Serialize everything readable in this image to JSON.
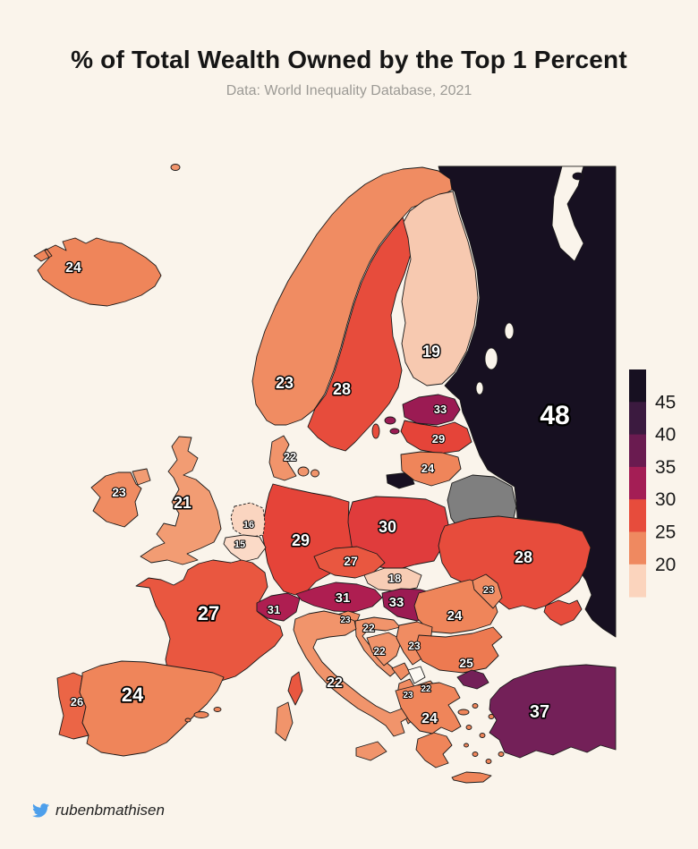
{
  "title": "% of Total Wealth Owned by the Top 1 Percent",
  "subtitle": "Data: World Inequality Database, 2021",
  "footer": {
    "handle": "rubenbmathisen",
    "icon": "twitter-bird-icon"
  },
  "colors": {
    "background": "#FAF4EB",
    "border": "#1A1A1A",
    "label_fill": "#FFFFFF",
    "label_stroke": "#000000",
    "twitter_blue": "#4D9FEB",
    "title_text": "#151515",
    "subtitle_text": "#9C9A95"
  },
  "legend": {
    "ticks": [
      45,
      40,
      35,
      30,
      25,
      20
    ],
    "band_colors": [
      "#171021",
      "#3B1A3F",
      "#6A1B50",
      "#A41E55",
      "#E74C3C",
      "#EF8960",
      "#FBD4BD"
    ]
  },
  "chart_data": {
    "type": "heatmap",
    "subtype": "choropleth_map",
    "region": "Europe",
    "title": "% of Total Wealth Owned by the Top 1 Percent",
    "source": "Data: World Inequality Database, 2021",
    "value_label": "% of total wealth owned by the top 1 percent",
    "legend_ticks": [
      45,
      40,
      35,
      30,
      25,
      20
    ],
    "countries": [
      {
        "id": "iceland",
        "name": "Iceland",
        "value": 24
      },
      {
        "id": "norway",
        "name": "Norway",
        "value": 23
      },
      {
        "id": "sweden",
        "name": "Sweden",
        "value": 28
      },
      {
        "id": "finland",
        "name": "Finland",
        "value": 19
      },
      {
        "id": "denmark",
        "name": "Denmark",
        "value": 22
      },
      {
        "id": "estonia",
        "name": "Estonia",
        "value": 33
      },
      {
        "id": "latvia",
        "name": "Latvia",
        "value": 29
      },
      {
        "id": "lithuania",
        "name": "Lithuania",
        "value": 24
      },
      {
        "id": "russia",
        "name": "Russia",
        "value": 48
      },
      {
        "id": "belarus",
        "name": "Belarus",
        "value": null
      },
      {
        "id": "poland",
        "name": "Poland",
        "value": 30
      },
      {
        "id": "germany",
        "name": "Germany",
        "value": 29
      },
      {
        "id": "netherlands",
        "name": "Netherlands",
        "value": 16
      },
      {
        "id": "belgium",
        "name": "Belgium",
        "value": 15
      },
      {
        "id": "uk",
        "name": "United Kingdom",
        "value": 21
      },
      {
        "id": "ireland",
        "name": "Ireland",
        "value": 23
      },
      {
        "id": "france",
        "name": "France",
        "value": 27
      },
      {
        "id": "portugal",
        "name": "Portugal",
        "value": 26
      },
      {
        "id": "spain",
        "name": "Spain",
        "value": 24
      },
      {
        "id": "italy",
        "name": "Italy",
        "value": 22
      },
      {
        "id": "czechia",
        "name": "Czechia",
        "value": 27
      },
      {
        "id": "slovakia",
        "name": "Slovakia",
        "value": 18
      },
      {
        "id": "austria",
        "name": "Austria",
        "value": 31
      },
      {
        "id": "switzerland",
        "name": "Switzerland",
        "value": 31
      },
      {
        "id": "hungary",
        "name": "Hungary",
        "value": 33
      },
      {
        "id": "slovenia",
        "name": "Slovenia",
        "value": 23
      },
      {
        "id": "croatia",
        "name": "Croatia",
        "value": 22
      },
      {
        "id": "bosnia",
        "name": "Bosnia and Herzegovina",
        "value": 22
      },
      {
        "id": "serbia",
        "name": "Serbia",
        "value": 23
      },
      {
        "id": "montenegro",
        "name": "Montenegro",
        "value": null
      },
      {
        "id": "kosovo",
        "name": "Kosovo",
        "value": null
      },
      {
        "id": "macedonia",
        "name": "North Macedonia",
        "value": 22
      },
      {
        "id": "albania",
        "name": "Albania",
        "value": 23
      },
      {
        "id": "ukraine",
        "name": "Ukraine",
        "value": 28
      },
      {
        "id": "moldova",
        "name": "Moldova",
        "value": 23
      },
      {
        "id": "romania",
        "name": "Romania",
        "value": 24
      },
      {
        "id": "bulgaria",
        "name": "Bulgaria",
        "value": 25
      },
      {
        "id": "greece",
        "name": "Greece",
        "value": 24
      },
      {
        "id": "turkey",
        "name": "Turkey",
        "value": 37
      }
    ],
    "no_data": [
      "Belarus",
      "Kosovo"
    ],
    "other_colors": {
      "belarus": "#7F7F7F",
      "kosovo": "#FCF9F3",
      "montenegro": "#F08D63"
    },
    "value_colors": {
      "15": "#FBDAC7",
      "16": "#FAD5C0",
      "18": "#F8CDB5",
      "19": "#F7C9B0",
      "21": "#F29C73",
      "22": "#F1946B",
      "23": "#F08C62",
      "24": "#EF855A",
      "25": "#ED7A51",
      "26": "#EB6546",
      "27": "#E95740",
      "28": "#E74C3C",
      "29": "#E54439",
      "30": "#E03C3C",
      "31": "#AE1E51",
      "33": "#9B1B53",
      "37": "#732058",
      "48": "#171021"
    }
  }
}
